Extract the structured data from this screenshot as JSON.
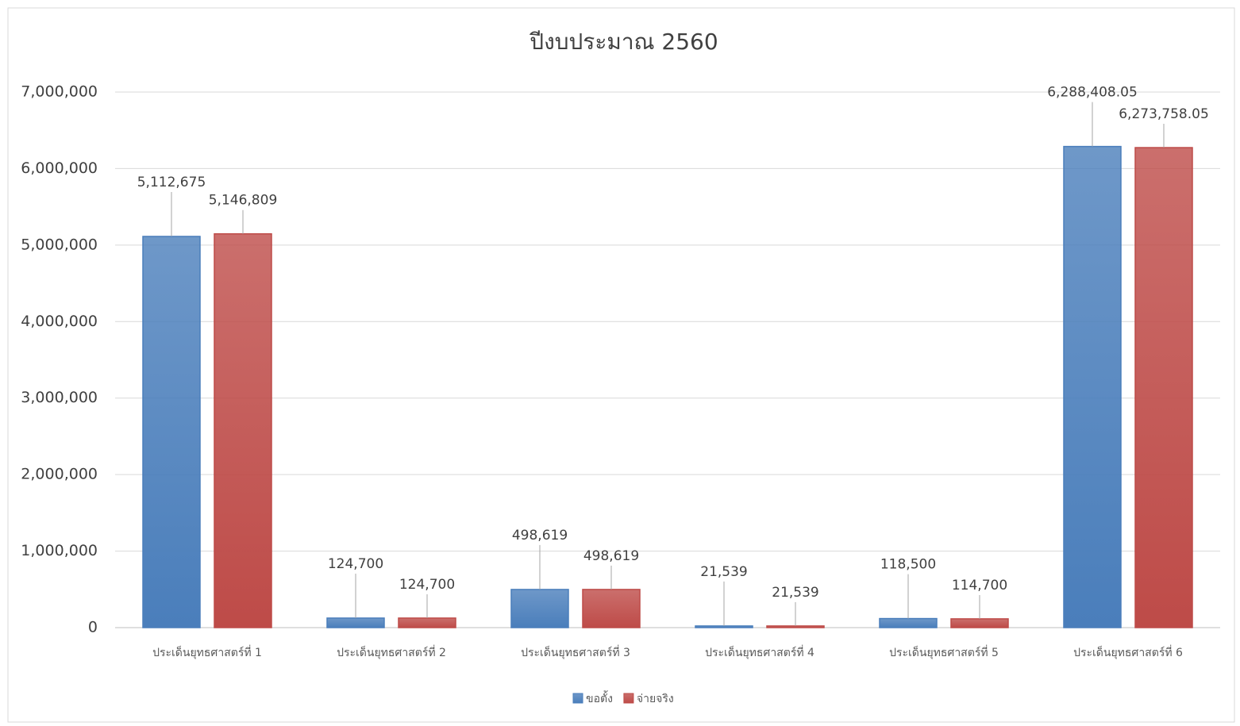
{
  "chart_data": {
    "type": "bar",
    "title": "ปีงบประมาณ 2560",
    "categories": [
      "ประเด็นยุทธศาสตร์ที่ 1",
      "ประเด็นยุทธศาสตร์ที่ 2",
      "ประเด็นยุทธศาสตร์ที่ 3",
      "ประเด็นยุทธศาสตร์ที่ 4",
      "ประเด็นยุทธศาสตร์ที่ 5",
      "ประเด็นยุทธศาสตร์ที่ 6"
    ],
    "series": [
      {
        "name": "ขอตั้ง",
        "color": "#4a7ebb",
        "values": [
          5112675,
          124700,
          498619,
          21539,
          118500,
          6288408.05
        ],
        "value_labels": [
          "5,112,675",
          "124,700",
          "498,619",
          "21,539",
          "118,500",
          "6,288,408.05"
        ]
      },
      {
        "name": "จ่ายจริง",
        "color": "#be4b48",
        "values": [
          5146809,
          124700,
          498619,
          21539,
          114700,
          6273758.05
        ],
        "value_labels": [
          "5,146,809",
          "124,700",
          "498,619",
          "21,539",
          "114,700",
          "6,273,758.05"
        ]
      }
    ],
    "ylim": [
      0,
      7000000
    ],
    "yticks": [
      0,
      {
        "value": 1000000,
        "label": "1,000,000"
      },
      {
        "value": 2000000,
        "label": "2,000,000"
      },
      {
        "value": 3000000,
        "label": "3,000,000"
      },
      {
        "value": 4000000,
        "label": "4,000,000"
      },
      {
        "value": 5000000,
        "label": "5,000,000"
      },
      {
        "value": 6000000,
        "label": "6,000,000"
      },
      {
        "value": 7000000,
        "label": "7,000,000"
      }
    ],
    "grid": true,
    "legend": "bottom"
  }
}
